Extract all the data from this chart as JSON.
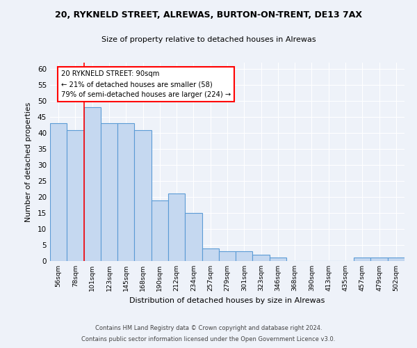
{
  "title1": "20, RYKNELD STREET, ALREWAS, BURTON-ON-TRENT, DE13 7AX",
  "title2": "Size of property relative to detached houses in Alrewas",
  "xlabel": "Distribution of detached houses by size in Alrewas",
  "ylabel": "Number of detached properties",
  "categories": [
    "56sqm",
    "78sqm",
    "101sqm",
    "123sqm",
    "145sqm",
    "168sqm",
    "190sqm",
    "212sqm",
    "234sqm",
    "257sqm",
    "279sqm",
    "301sqm",
    "323sqm",
    "346sqm",
    "368sqm",
    "390sqm",
    "413sqm",
    "435sqm",
    "457sqm",
    "479sqm",
    "502sqm"
  ],
  "values": [
    43,
    41,
    48,
    43,
    43,
    41,
    19,
    21,
    15,
    4,
    3,
    3,
    2,
    1,
    0,
    0,
    0,
    0,
    1,
    1,
    1
  ],
  "bar_color": "#c5d8f0",
  "bar_edge_color": "#5b9bd5",
  "annotation_text": "20 RYKNELD STREET: 90sqm\n← 21% of detached houses are smaller (58)\n79% of semi-detached houses are larger (224) →",
  "annotation_box_color": "white",
  "annotation_box_edge": "red",
  "ylim": [
    0,
    62
  ],
  "yticks": [
    0,
    5,
    10,
    15,
    20,
    25,
    30,
    35,
    40,
    45,
    50,
    55,
    60
  ],
  "footer1": "Contains HM Land Registry data © Crown copyright and database right 2024.",
  "footer2": "Contains public sector information licensed under the Open Government Licence v3.0.",
  "bg_color": "#eef2f9"
}
